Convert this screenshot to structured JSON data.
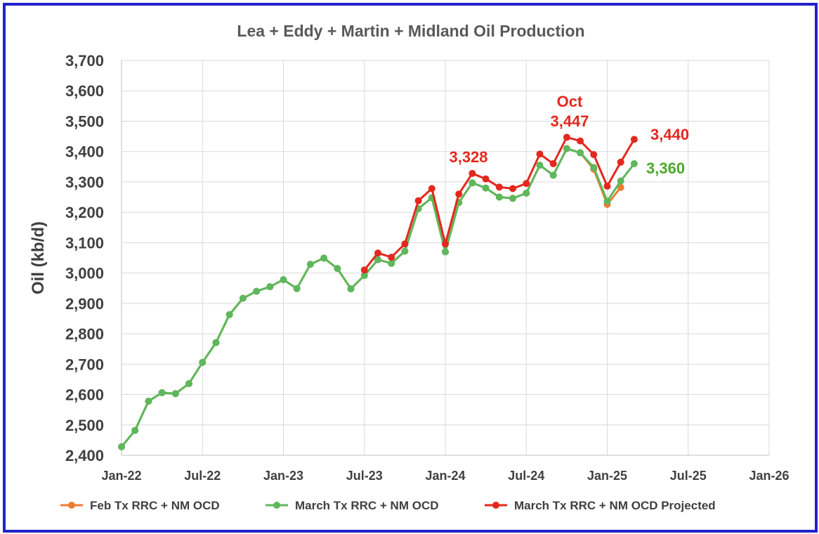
{
  "chart_data": {
    "type": "line",
    "title": "Lea + Eddy + Martin + Midland Oil Production",
    "ylabel": "Oil (kb/d)",
    "xlabel": "",
    "ylim": [
      2400,
      3700
    ],
    "yticks": [
      "2,400",
      "2,500",
      "2,600",
      "2,700",
      "2,800",
      "2,900",
      "3,000",
      "3,100",
      "3,200",
      "3,300",
      "3,400",
      "3,500",
      "3,600",
      "3,700"
    ],
    "xticks": [
      "Jan-22",
      "Jul-22",
      "Jan-23",
      "Jul-23",
      "Jan-24",
      "Jul-24",
      "Jan-25",
      "Jul-25",
      "Jan-26"
    ],
    "grid": true,
    "legend_position": "bottom",
    "series": [
      {
        "name": "Feb Tx RRC + NM OCD",
        "color": "#ed7d31",
        "start": "Jan-22",
        "values": [
          2428,
          2482,
          2578,
          2606,
          2603,
          2636,
          2706,
          2771,
          2863,
          2917,
          2940,
          2955,
          2978,
          2949,
          3029,
          3049,
          3015,
          2948,
          2992,
          3044,
          3032,
          3072,
          3212,
          3248,
          3070,
          3232,
          3297,
          3280,
          3250,
          3246,
          3263,
          3355,
          3322,
          3410,
          3396,
          3342,
          3226,
          3282
        ]
      },
      {
        "name": "March Tx RRC + NM OCD",
        "color": "#5cb85c",
        "start": "Jan-22",
        "values": [
          2428,
          2482,
          2578,
          2606,
          2603,
          2636,
          2706,
          2771,
          2863,
          2917,
          2940,
          2955,
          2978,
          2949,
          3029,
          3049,
          3015,
          2948,
          2992,
          3044,
          3032,
          3072,
          3212,
          3248,
          3070,
          3232,
          3297,
          3280,
          3250,
          3246,
          3263,
          3355,
          3322,
          3410,
          3396,
          3348,
          3237,
          3303,
          3360
        ]
      },
      {
        "name": "March Tx RRC + NM OCD Projected",
        "color": "#e3281e",
        "start": "Jul-23",
        "values": [
          3010,
          3066,
          3052,
          3096,
          3238,
          3278,
          3096,
          3260,
          3328,
          3310,
          3283,
          3278,
          3295,
          3392,
          3360,
          3447,
          3435,
          3390,
          3286,
          3365,
          3440
        ]
      }
    ],
    "annotations": [
      {
        "text": "3,328",
        "color": "#e3281e"
      },
      {
        "text": "Oct",
        "color": "#e3281e"
      },
      {
        "text": "3,447",
        "color": "#e3281e"
      },
      {
        "text": "3,440",
        "color": "#e3281e"
      },
      {
        "text": "3,360",
        "color": "#4ea72e"
      }
    ]
  }
}
